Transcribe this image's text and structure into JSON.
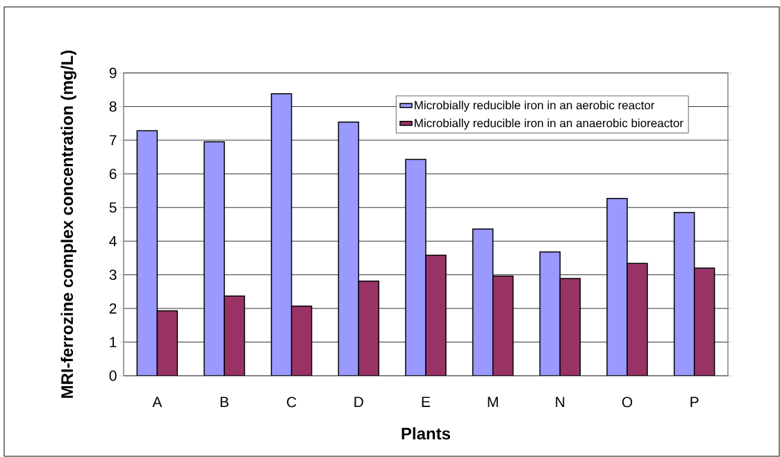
{
  "chart_data": {
    "type": "bar",
    "xlabel": "Plants",
    "ylabel": "MRI-ferrozine complex concentration (mg/L)",
    "categories": [
      "A",
      "B",
      "C",
      "D",
      "E",
      "M",
      "N",
      "O",
      "P"
    ],
    "series": [
      {
        "name": "Microbially reducible iron in an aerobic reactor",
        "color": "#9999ff",
        "values": [
          7.28,
          6.95,
          8.38,
          7.54,
          6.43,
          4.36,
          3.68,
          5.27,
          4.85
        ]
      },
      {
        "name": "Microbially reducible iron in an anaerobic bioreactor",
        "color": "#993366",
        "values": [
          1.93,
          2.37,
          2.07,
          2.81,
          3.58,
          2.96,
          2.89,
          3.34,
          3.2
        ]
      }
    ],
    "ylim": [
      0,
      9
    ],
    "yticks": [
      0,
      1,
      2,
      3,
      4,
      5,
      6,
      7,
      8,
      9
    ],
    "grid": "y",
    "legend": "top right"
  }
}
